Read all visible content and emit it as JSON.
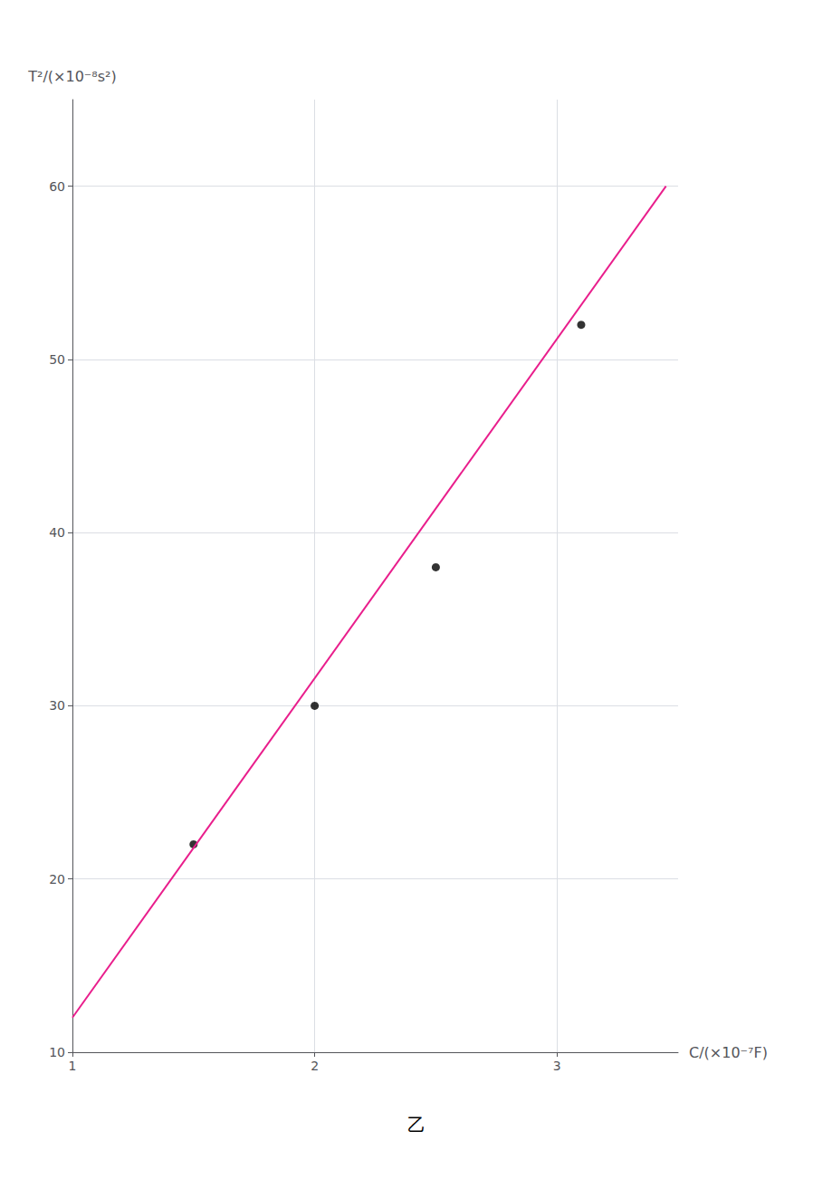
{
  "chart_data": {
    "type": "scatter",
    "xlabel": "C/(×10⁻⁷F)",
    "ylabel": "T²/(×10⁻⁸s²)",
    "annotations": [
      "乙"
    ],
    "xlim": [
      1,
      3.5
    ],
    "xticks": [
      1,
      2,
      3
    ],
    "ylim": [
      10,
      65
    ],
    "yticks": [
      10,
      20,
      30,
      40,
      50,
      60
    ],
    "grid": true,
    "series": [
      {
        "type": "line",
        "color": "#e91e8c",
        "x": [
          1.0,
          3.45
        ],
        "values": [
          12,
          60
        ]
      },
      {
        "type": "scatter",
        "color": "#000000",
        "x": [
          1.5,
          2.0,
          2.5,
          3.1
        ],
        "values": [
          22,
          30,
          38,
          52
        ]
      }
    ]
  }
}
